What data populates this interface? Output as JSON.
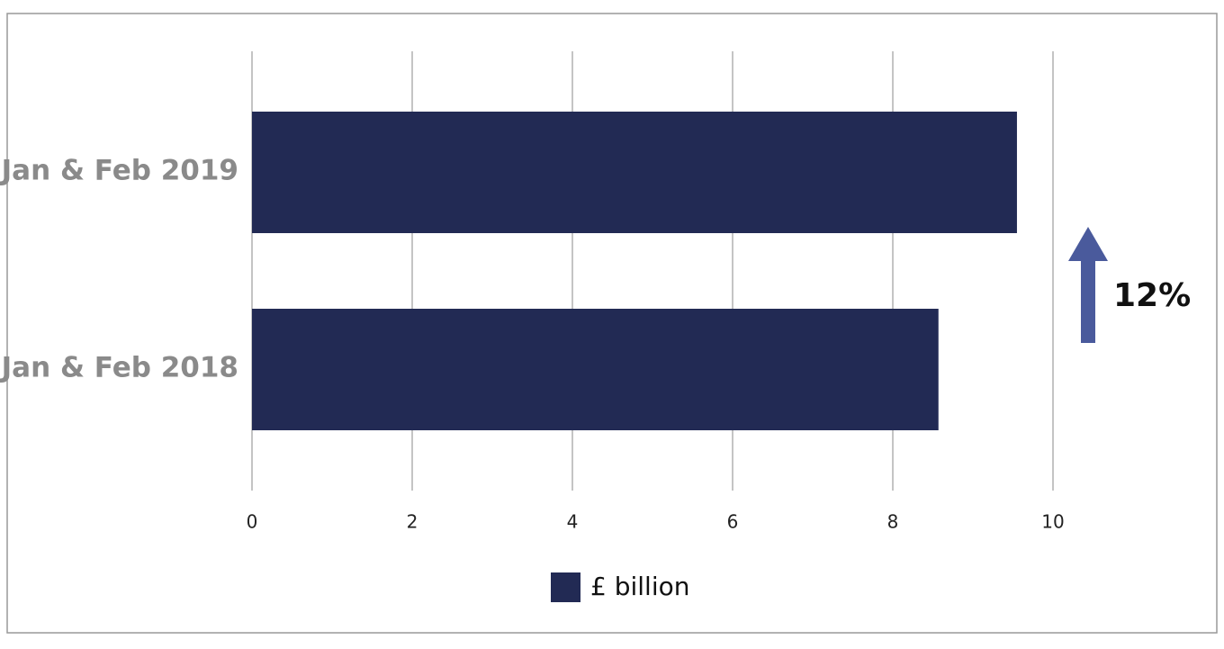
{
  "chart_data": {
    "type": "hbar",
    "categories": [
      "Jan & Feb 2019",
      "Jan & Feb 2018"
    ],
    "series": [
      {
        "name": "£ billion",
        "color": "#222a54",
        "values": [
          9.55,
          8.57
        ]
      }
    ],
    "xlim": [
      0,
      10
    ],
    "xticks": [
      0,
      2,
      4,
      6,
      8,
      10
    ],
    "grid": true,
    "annotation": "12%"
  }
}
